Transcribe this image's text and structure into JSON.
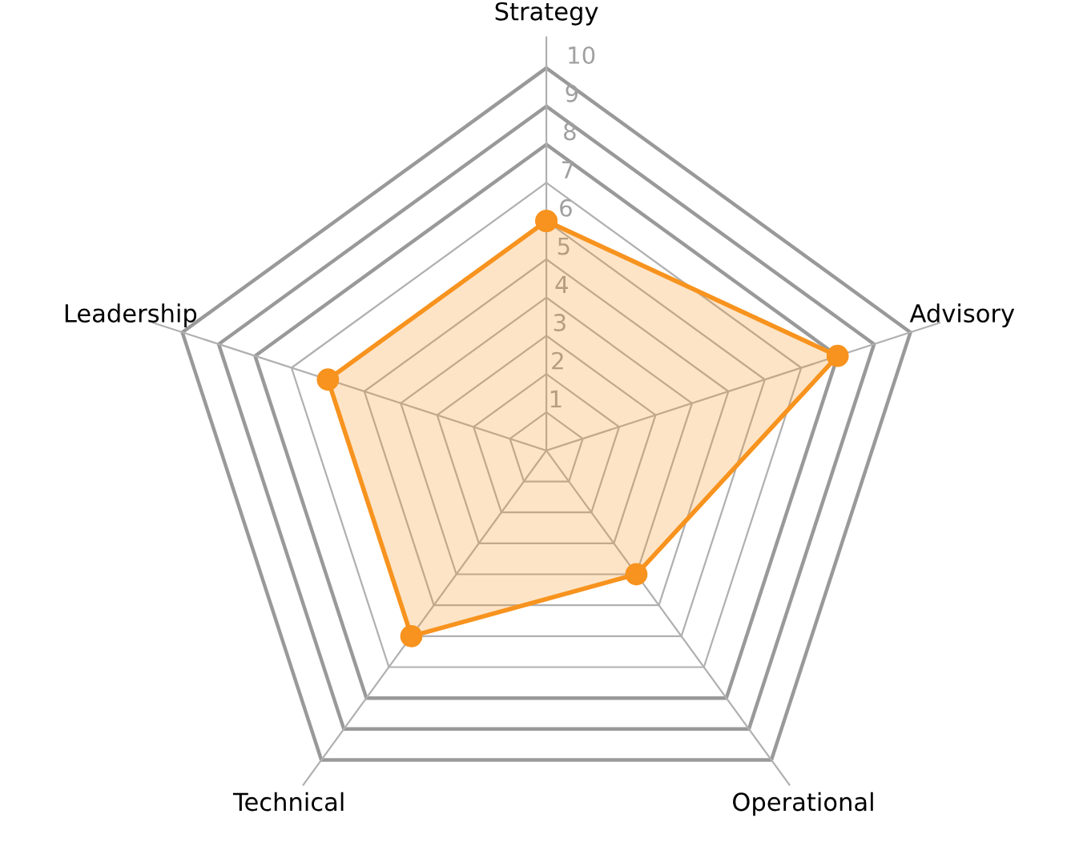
{
  "chart_data": {
    "type": "radar",
    "categories": [
      "Strategy",
      "Advisory",
      "Operational",
      "Technical",
      "Leadership"
    ],
    "series": [
      {
        "color": "#f7931e",
        "values": [
          6,
          8,
          4,
          6,
          6
        ]
      }
    ],
    "ylim": [
      0,
      10
    ],
    "yticks": [
      1,
      2,
      3,
      4,
      5,
      6,
      7,
      8,
      9,
      10
    ],
    "grid": true,
    "marker": "circle",
    "legend": false
  }
}
